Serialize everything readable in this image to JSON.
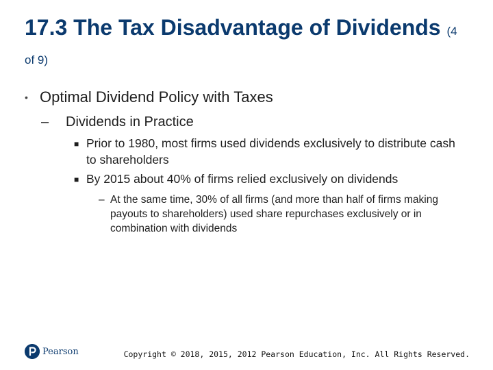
{
  "title": {
    "main": "17.3 The Tax Disadvantage of Dividends",
    "counter": "(4 of 9)"
  },
  "content": {
    "level1": "Optimal Dividend Policy with Taxes",
    "level2": "Dividends in Practice",
    "level3": [
      "Prior to 1980, most firms used dividends exclusively to distribute cash to shareholders",
      "By 2015 about 40% of firms relied exclusively on dividends"
    ],
    "level4": "At the same time, 30% of all firms (and more than half of firms making payouts to shareholders) used share repurchases exclusively or in combination with dividends"
  },
  "markers": {
    "bullet": "•",
    "dash": "–",
    "square": "■"
  },
  "footer": {
    "logo_text": "Pearson",
    "copyright": "Copyright © 2018, 2015, 2012 Pearson Education, Inc. All Rights Reserved."
  },
  "colors": {
    "title": "#0b3a6e",
    "text": "#1e1e1e",
    "brand": "#0b3a6e"
  },
  "icons": {
    "logo": "pearson-logo-icon"
  }
}
